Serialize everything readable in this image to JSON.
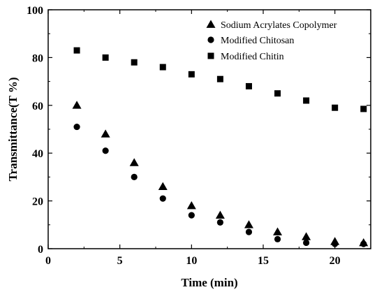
{
  "chart_data": {
    "type": "scatter",
    "xlabel": "Time (min)",
    "ylabel": "Transmittance(T %)",
    "xlim": [
      0,
      22.5
    ],
    "ylim": [
      0,
      100
    ],
    "xticks": [
      0,
      5,
      10,
      15,
      20
    ],
    "yticks": [
      0,
      20,
      40,
      60,
      80,
      100
    ],
    "grid": false,
    "legend_position": "top-right",
    "series": [
      {
        "name": "Sodium Acrylates Copolymer",
        "marker": "triangle",
        "color": "#000000",
        "points": [
          [
            2,
            60
          ],
          [
            4,
            48
          ],
          [
            6,
            36
          ],
          [
            8,
            26
          ],
          [
            10,
            18
          ],
          [
            12,
            14
          ],
          [
            14,
            10
          ],
          [
            16,
            7
          ],
          [
            18,
            5
          ],
          [
            20,
            3
          ],
          [
            22,
            2.5
          ]
        ]
      },
      {
        "name": "Modified Chitosan",
        "marker": "circle",
        "color": "#000000",
        "points": [
          [
            2,
            51
          ],
          [
            4,
            41
          ],
          [
            6,
            30
          ],
          [
            8,
            21
          ],
          [
            10,
            14
          ],
          [
            12,
            11
          ],
          [
            14,
            7
          ],
          [
            16,
            4
          ],
          [
            18,
            2.5
          ],
          [
            20,
            2
          ],
          [
            22,
            2
          ]
        ]
      },
      {
        "name": "Modified Chitin",
        "marker": "square",
        "color": "#000000",
        "points": [
          [
            2,
            83
          ],
          [
            4,
            80
          ],
          [
            6,
            78
          ],
          [
            8,
            76
          ],
          [
            10,
            73
          ],
          [
            12,
            71
          ],
          [
            14,
            68
          ],
          [
            16,
            65
          ],
          [
            18,
            62
          ],
          [
            20,
            59
          ],
          [
            22,
            58.5
          ]
        ]
      }
    ]
  }
}
